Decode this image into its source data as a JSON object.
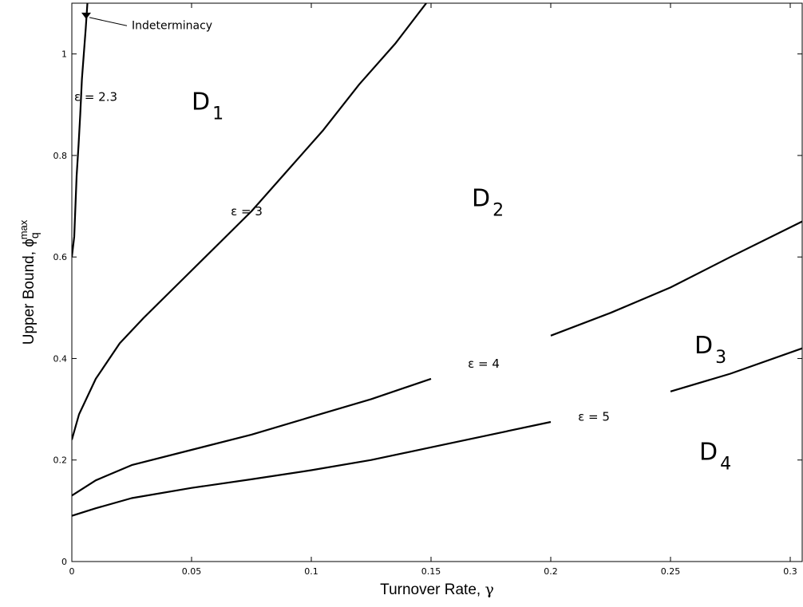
{
  "chart_data": {
    "type": "line",
    "xlabel": "Turnover Rate,",
    "xlabel_symbol": "γ",
    "ylabel": "Upper Bound, ",
    "ylabel_symbol": "ϕ",
    "ylabel_sub": "q",
    "ylabel_sup": "max",
    "xlim": [
      0,
      0.305
    ],
    "ylim": [
      0,
      1.1
    ],
    "x_ticks": [
      0,
      0.05,
      0.1,
      0.15,
      0.2,
      0.25,
      0.3
    ],
    "x_tick_labels": [
      "0",
      "0.05",
      "0.1",
      "0.15",
      "0.2",
      "0.25",
      "0.3"
    ],
    "y_ticks": [
      0,
      0.2,
      0.4,
      0.6,
      0.8,
      1.0
    ],
    "y_tick_labels": [
      "0",
      "0.2",
      "0.4",
      "0.6",
      "0.8",
      "1"
    ],
    "grid": false,
    "series": [
      {
        "name": "ε = 2.3",
        "label_at": [
          0.01,
          0.915
        ],
        "gap": [
          0.9,
          0.93
        ],
        "points": [
          [
            0.0,
            0.6
          ],
          [
            0.001,
            0.64
          ],
          [
            0.0015,
            0.7
          ],
          [
            0.002,
            0.76
          ],
          [
            0.0028,
            0.82
          ],
          [
            0.0035,
            0.88
          ],
          [
            0.0042,
            0.95
          ],
          [
            0.005,
            1.0
          ],
          [
            0.0058,
            1.05
          ],
          [
            0.0065,
            1.1
          ]
        ]
      },
      {
        "name": "ε = 3",
        "label_at": [
          0.073,
          0.69
        ],
        "gap": [
          0.66,
          0.72
        ],
        "points": [
          [
            0.0,
            0.24
          ],
          [
            0.003,
            0.29
          ],
          [
            0.01,
            0.36
          ],
          [
            0.02,
            0.43
          ],
          [
            0.03,
            0.48
          ],
          [
            0.045,
            0.55
          ],
          [
            0.06,
            0.62
          ],
          [
            0.075,
            0.69
          ],
          [
            0.09,
            0.77
          ],
          [
            0.105,
            0.85
          ],
          [
            0.12,
            0.94
          ],
          [
            0.135,
            1.02
          ],
          [
            0.148,
            1.1
          ]
        ]
      },
      {
        "name": "ε = 4",
        "label_at": [
          0.172,
          0.39
        ],
        "gap": [
          0.158,
          0.192
        ],
        "points": [
          [
            0.0,
            0.13
          ],
          [
            0.01,
            0.16
          ],
          [
            0.025,
            0.19
          ],
          [
            0.05,
            0.22
          ],
          [
            0.075,
            0.25
          ],
          [
            0.1,
            0.285
          ],
          [
            0.125,
            0.32
          ],
          [
            0.15,
            0.36
          ],
          [
            0.175,
            0.4
          ],
          [
            0.2,
            0.445
          ],
          [
            0.225,
            0.49
          ],
          [
            0.25,
            0.54
          ],
          [
            0.275,
            0.6
          ],
          [
            0.305,
            0.67
          ]
        ]
      },
      {
        "name": "ε = 5",
        "label_at": [
          0.218,
          0.285
        ],
        "gap": [
          0.206,
          0.237
        ],
        "points": [
          [
            0.0,
            0.09
          ],
          [
            0.01,
            0.105
          ],
          [
            0.025,
            0.125
          ],
          [
            0.05,
            0.145
          ],
          [
            0.075,
            0.162
          ],
          [
            0.1,
            0.18
          ],
          [
            0.125,
            0.2
          ],
          [
            0.15,
            0.225
          ],
          [
            0.175,
            0.25
          ],
          [
            0.2,
            0.275
          ],
          [
            0.225,
            0.305
          ],
          [
            0.25,
            0.335
          ],
          [
            0.275,
            0.37
          ],
          [
            0.305,
            0.42
          ]
        ]
      }
    ],
    "regions": [
      {
        "letter": "D",
        "sub": "1",
        "at": [
          0.05,
          0.89
        ]
      },
      {
        "letter": "D",
        "sub": "2",
        "at": [
          0.167,
          0.7
        ]
      },
      {
        "letter": "D",
        "sub": "3",
        "at": [
          0.26,
          0.41
        ]
      },
      {
        "letter": "D",
        "sub": "4",
        "at": [
          0.262,
          0.2
        ]
      }
    ],
    "annotation": {
      "text": "Indeterminacy",
      "at": [
        0.025,
        1.065
      ],
      "point": [
        0.006,
        1.075
      ]
    }
  }
}
